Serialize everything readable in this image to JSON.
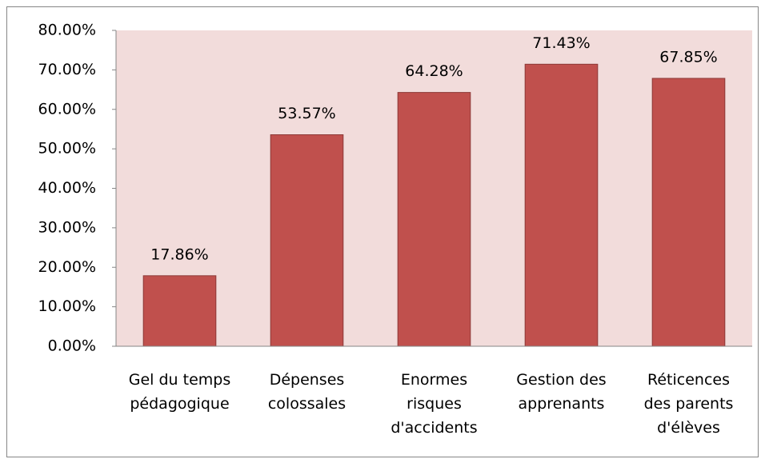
{
  "chart_data": {
    "type": "bar",
    "categories": [
      "Gel du temps\npédagogique",
      "Dépenses\ncolossales",
      "Enormes\nrisques\nd'accidents",
      "Gestion des\napprenants",
      "Réticences\ndes parents\nd'élèves"
    ],
    "values": [
      17.86,
      53.57,
      64.28,
      71.43,
      67.85
    ],
    "value_labels": [
      "17.86%",
      "53.57%",
      "64.28%",
      "71.43%",
      "67.85%"
    ],
    "color": "#c0504d",
    "ylim": [
      0,
      80
    ],
    "yticks": [
      {
        "value": 0,
        "label": "0.00%"
      },
      {
        "value": 10,
        "label": "10.00%"
      },
      {
        "value": 20,
        "label": "20.00%"
      },
      {
        "value": 30,
        "label": "30.00%"
      },
      {
        "value": 40,
        "label": "40.00%"
      },
      {
        "value": 50,
        "label": "50.00%"
      },
      {
        "value": 60,
        "label": "60.00%"
      },
      {
        "value": 70,
        "label": "70.00%"
      },
      {
        "value": 80,
        "label": "80.00%"
      }
    ]
  }
}
